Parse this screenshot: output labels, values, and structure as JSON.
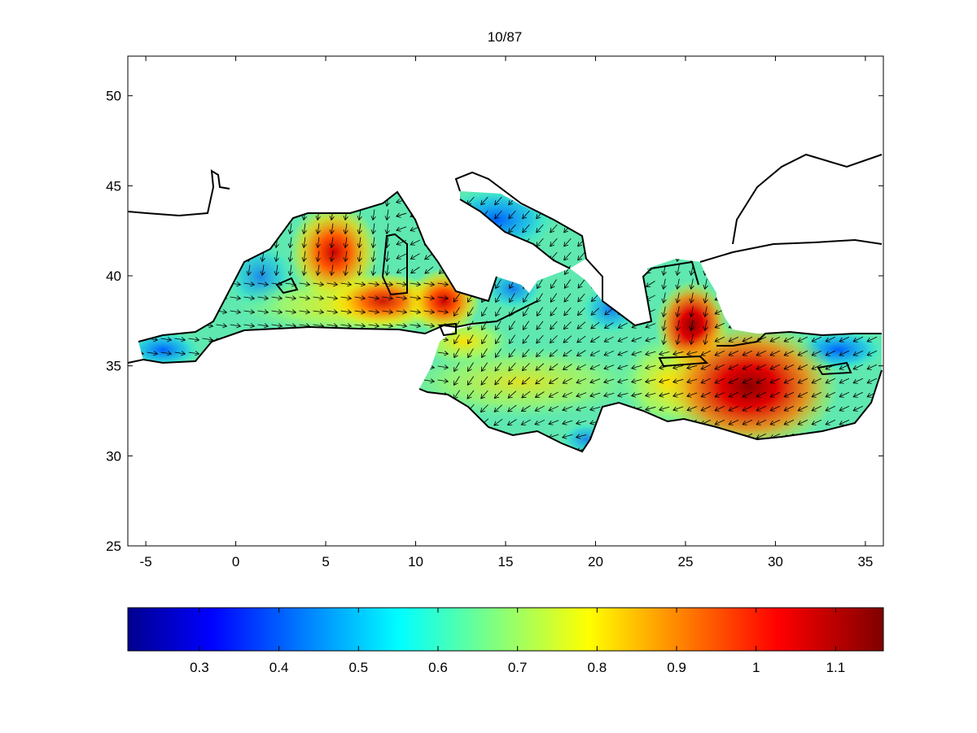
{
  "figure": {
    "title": "10/87"
  },
  "map": {
    "x_ticks": [
      "-5",
      "0",
      "5",
      "10",
      "15",
      "20",
      "25",
      "30",
      "35"
    ],
    "y_ticks": [
      "25",
      "30",
      "35",
      "40",
      "45",
      "50"
    ],
    "x_tick_values": [
      -5,
      0,
      5,
      10,
      15,
      20,
      25,
      30,
      35
    ],
    "y_tick_values": [
      25,
      30,
      35,
      40,
      45,
      50
    ],
    "lon_range": [
      -6,
      36
    ],
    "lat_range": [
      25,
      52.2
    ],
    "field": "wind speed magnitude with direction arrows",
    "hotspots": [
      {
        "lon": 5.5,
        "lat": 41.5,
        "value": 0.98
      },
      {
        "lon": 8.5,
        "lat": 38.7,
        "value": 0.92
      },
      {
        "lon": 11.8,
        "lat": 38.2,
        "value": 0.95
      },
      {
        "lon": 25.3,
        "lat": 36.3,
        "value": 1.05
      },
      {
        "lon": 28.5,
        "lat": 33.5,
        "value": 1.15
      }
    ]
  },
  "colorbar": {
    "tick_labels": [
      "0.3",
      "0.4",
      "0.5",
      "0.6",
      "0.7",
      "0.8",
      "0.9",
      "1",
      "1.1"
    ],
    "tick_values": [
      0.3,
      0.4,
      0.5,
      0.6,
      0.7,
      0.8,
      0.9,
      1.0,
      1.1
    ],
    "range": [
      0.21,
      1.16
    ],
    "colormap": "jet"
  },
  "colors": {
    "land_outline": "#000000",
    "background": "#ffffff"
  }
}
